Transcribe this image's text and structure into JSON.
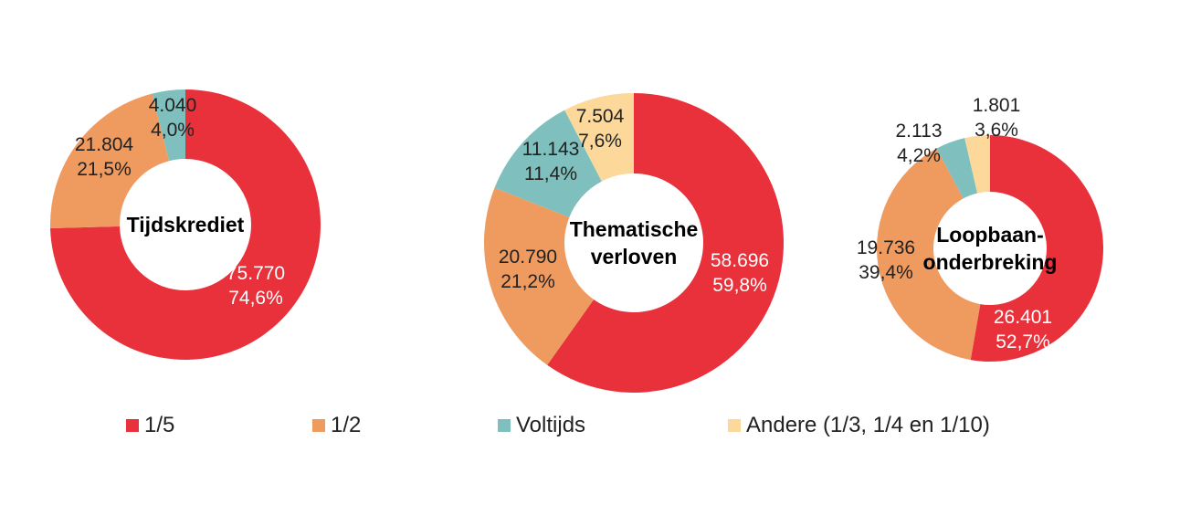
{
  "colors": {
    "one_fifth": "#e8313a",
    "half": "#ef9a5f",
    "fulltime": "#7fbfbd",
    "other": "#fcd99a"
  },
  "legend": [
    {
      "key": "one_fifth",
      "label": "1/5"
    },
    {
      "key": "half",
      "label": "1/2"
    },
    {
      "key": "fulltime",
      "label": "Voltijds"
    },
    {
      "key": "other",
      "label": "Andere (1/3, 1/4 en 1/10)"
    }
  ],
  "chart_data": [
    {
      "type": "pie",
      "donut": true,
      "title": "Tijdskrediet",
      "title_lines": [
        "Tijdskrediet"
      ],
      "slices": [
        {
          "key": "one_fifth",
          "name": "1/5",
          "value": 75770,
          "value_label": "75.770",
          "percent_label": "74,6%"
        },
        {
          "key": "half",
          "name": "1/2",
          "value": 21804,
          "value_label": "21.804",
          "percent_label": "21,5%"
        },
        {
          "key": "fulltime",
          "name": "Voltijds",
          "value": 4040,
          "value_label": "4.040",
          "percent_label": "4,0%"
        }
      ]
    },
    {
      "type": "pie",
      "donut": true,
      "title": "Thematische verloven",
      "title_lines": [
        "Thematische",
        "verloven"
      ],
      "slices": [
        {
          "key": "one_fifth",
          "name": "1/5",
          "value": 58696,
          "value_label": "58.696",
          "percent_label": "59,8%"
        },
        {
          "key": "half",
          "name": "1/2",
          "value": 20790,
          "value_label": "20.790",
          "percent_label": "21,2%"
        },
        {
          "key": "fulltime",
          "name": "Voltijds",
          "value": 11143,
          "value_label": "11.143",
          "percent_label": "11,4%"
        },
        {
          "key": "other",
          "name": "Andere (1/3, 1/4 en 1/10)",
          "value": 7504,
          "value_label": "7.504",
          "percent_label": "7,6%"
        }
      ]
    },
    {
      "type": "pie",
      "donut": true,
      "title": "Loopbaanonderbreking",
      "title_lines": [
        "Loopbaan-",
        "onderbreking"
      ],
      "slices": [
        {
          "key": "one_fifth",
          "name": "1/5",
          "value": 26401,
          "value_label": "26.401",
          "percent_label": "52,7%"
        },
        {
          "key": "half",
          "name": "1/2",
          "value": 19736,
          "value_label": "19.736",
          "percent_label": "39,4%"
        },
        {
          "key": "fulltime",
          "name": "Voltijds",
          "value": 2113,
          "value_label": "2.113",
          "percent_label": "4,2%"
        },
        {
          "key": "other",
          "name": "Andere (1/3, 1/4 en 1/10)",
          "value": 1801,
          "value_label": "1.801",
          "percent_label": "3,6%"
        }
      ]
    }
  ]
}
